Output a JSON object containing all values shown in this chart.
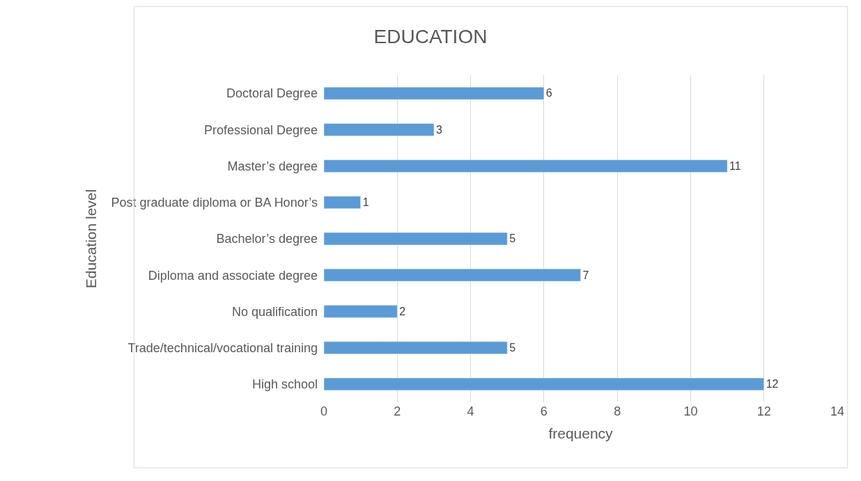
{
  "chart_data": {
    "type": "bar",
    "orientation": "horizontal",
    "title": "EDUCATION",
    "xlabel": "frequency",
    "ylabel": "Education level",
    "categories": [
      "Doctoral Degree",
      "Professional Degree",
      "Master’s degree",
      "Post graduate diploma or BA Honor’s",
      "Bachelor’s degree",
      "Diploma and associate degree",
      "No qualification",
      "Trade/technical/vocational training",
      "High school"
    ],
    "values": [
      6,
      3,
      11,
      1,
      5,
      7,
      2,
      5,
      12
    ],
    "color": "#5b9bd5",
    "xlim": [
      0,
      14
    ],
    "xticks": [
      0,
      2,
      4,
      6,
      8,
      10,
      12,
      14
    ],
    "grid": "x",
    "data_labels": true
  }
}
